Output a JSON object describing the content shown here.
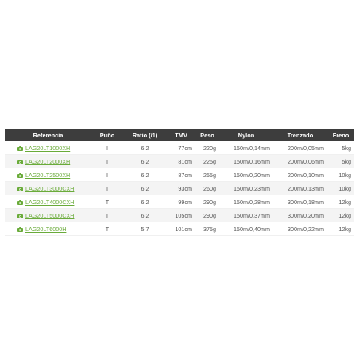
{
  "table": {
    "headers": [
      "Referencia",
      "Puño",
      "Ratio (/1)",
      "TMV",
      "Peso",
      "Nylon",
      "Trenzado",
      "Freno"
    ],
    "rows": [
      {
        "ref": "LAG20LT1000XH",
        "puno": "I",
        "ratio": "6,2",
        "tmv": "77cm",
        "peso": "220g",
        "nylon": "150m/0,14mm",
        "trenzado": "200m/0,05mm",
        "freno": "5kg"
      },
      {
        "ref": "LAG20LT2000XH",
        "puno": "I",
        "ratio": "6,2",
        "tmv": "81cm",
        "peso": "225g",
        "nylon": "150m/0,16mm",
        "trenzado": "200m/0,06mm",
        "freno": "5kg"
      },
      {
        "ref": "LAG20LT2500XH",
        "puno": "I",
        "ratio": "6,2",
        "tmv": "87cm",
        "peso": "255g",
        "nylon": "150m/0,20mm",
        "trenzado": "200m/0,10mm",
        "freno": "10kg"
      },
      {
        "ref": "LAG20LT3000CXH",
        "puno": "I",
        "ratio": "6,2",
        "tmv": "93cm",
        "peso": "260g",
        "nylon": "150m/0,23mm",
        "trenzado": "200m/0,13mm",
        "freno": "10kg"
      },
      {
        "ref": "LAG20LT4000CXH",
        "puno": "T",
        "ratio": "6,2",
        "tmv": "99cm",
        "peso": "290g",
        "nylon": "150m/0,28mm",
        "trenzado": "300m/0,18mm",
        "freno": "12kg"
      },
      {
        "ref": "LAG20LT5000CXH",
        "puno": "T",
        "ratio": "6,2",
        "tmv": "105cm",
        "peso": "290g",
        "nylon": "150m/0,37mm",
        "trenzado": "300m/0,20mm",
        "freno": "12kg"
      },
      {
        "ref": "LAG20LT6000H",
        "puno": "T",
        "ratio": "5,7",
        "tmv": "101cm",
        "peso": "375g",
        "nylon": "150m/0,40mm",
        "trenzado": "300m/0,22mm",
        "freno": "12kg"
      }
    ],
    "colors": {
      "header_bg": "#3d3d3d",
      "link": "#6aab3a",
      "row_alt": "#f4f4f4"
    },
    "row_icon": "camera-icon"
  }
}
